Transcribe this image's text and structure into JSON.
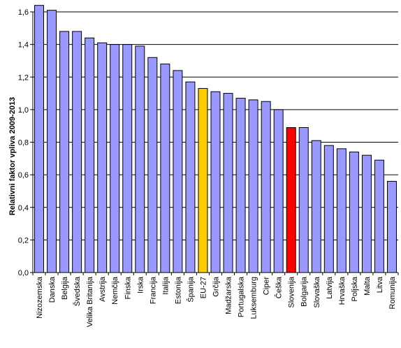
{
  "chart_data": {
    "type": "bar",
    "title": "",
    "xlabel": "",
    "ylabel": "Relativni faktor vpliva 2009-2013",
    "ylim": [
      0,
      1.6
    ],
    "yticks": [
      "0,0",
      "0,2",
      "0,4",
      "0,6",
      "0,8",
      "1,0",
      "1,2",
      "1,4",
      "1,6"
    ],
    "grid": "horizontal",
    "legend": "none",
    "categories": [
      "Nizozemska",
      "Danska",
      "Belgija",
      "Švedska",
      "Velika Britanija",
      "Avstrija",
      "Nemčija",
      "Finska",
      "Irska",
      "Francija",
      "Italija",
      "Estonija",
      "Španija",
      "EU-27",
      "Grčija",
      "Madžarska",
      "Portugalska",
      "Luksemburg",
      "Ciper",
      "Češka",
      "Slovenija",
      "Bolgarija",
      "Slovaška",
      "Latvija",
      "Hrvaška",
      "Poljska",
      "Malta",
      "Litva",
      "Romunija"
    ],
    "values": [
      1.64,
      1.61,
      1.48,
      1.48,
      1.44,
      1.41,
      1.4,
      1.4,
      1.39,
      1.32,
      1.28,
      1.24,
      1.17,
      1.13,
      1.11,
      1.1,
      1.07,
      1.06,
      1.05,
      1.0,
      0.89,
      0.89,
      0.81,
      0.78,
      0.76,
      0.74,
      0.72,
      0.69,
      0.56
    ],
    "colors": {
      "default": "#9999ff",
      "highlight": {
        "EU-27": "#ffcc00",
        "Slovenija": "#ff0000"
      },
      "bar_outline": "#000000",
      "grid": "#000000"
    }
  }
}
